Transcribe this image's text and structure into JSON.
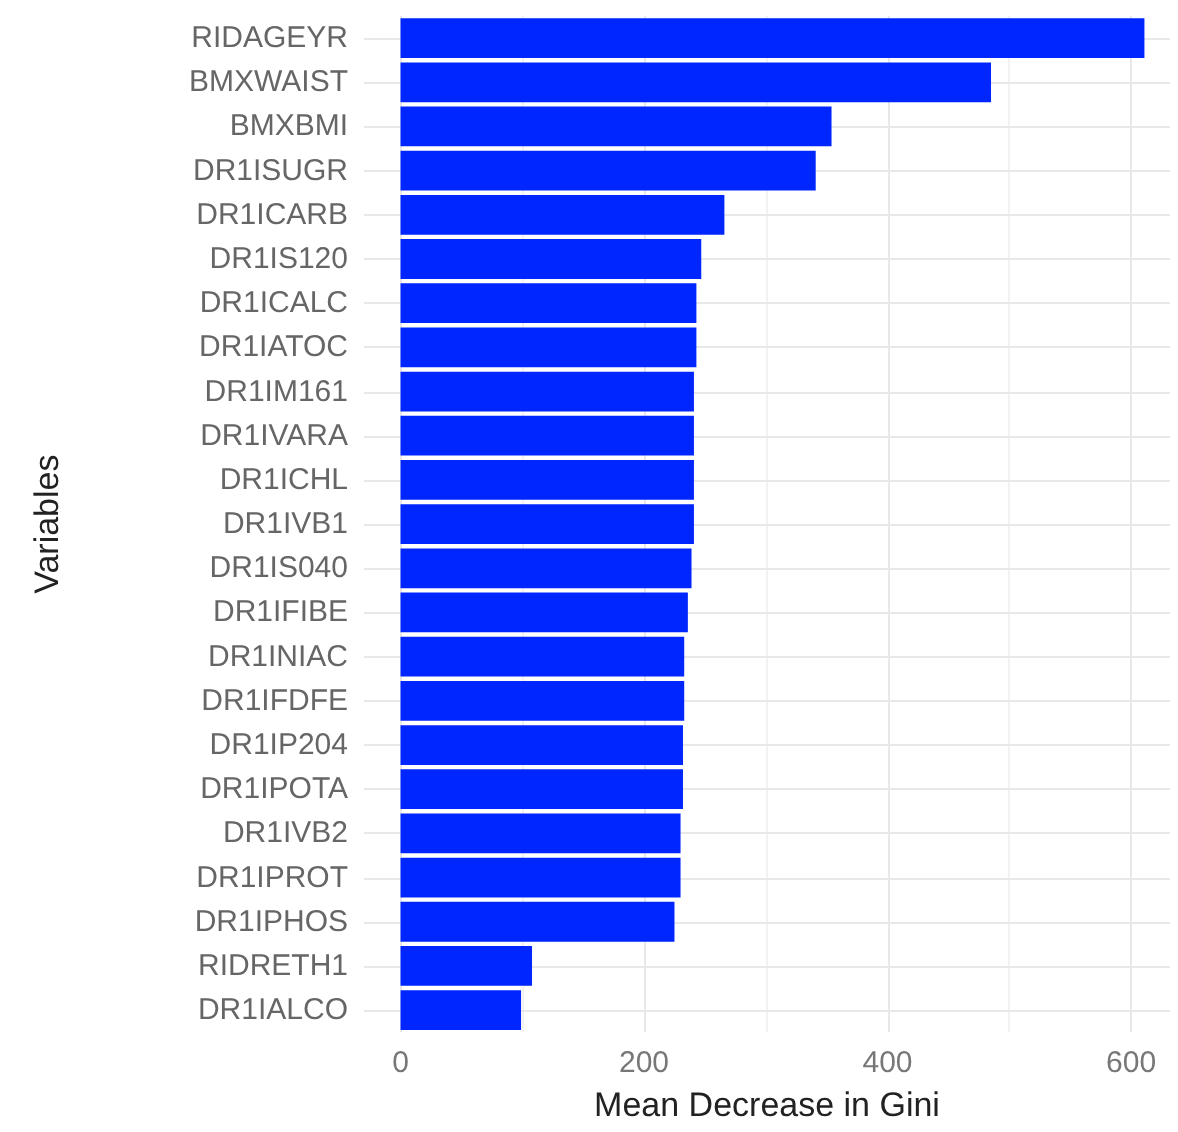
{
  "chart_data": {
    "type": "bar",
    "orientation": "horizontal",
    "xlabel": "Mean Decrease in Gini",
    "ylabel": "Variables",
    "categories": [
      "RIDAGEYR",
      "BMXWAIST",
      "BMXBMI",
      "DR1ISUGR",
      "DR1ICARB",
      "DR1IS120",
      "DR1ICALC",
      "DR1IATOC",
      "DR1IM161",
      "DR1IVARA",
      "DR1ICHL",
      "DR1IVB1",
      "DR1IS040",
      "DR1IFIBE",
      "DR1INIAC",
      "DR1IFDFE",
      "DR1IP204",
      "DR1IPOTA",
      "DR1IVB2",
      "DR1IPROT",
      "DR1IPHOS",
      "RIDRETH1",
      "DR1IALCO"
    ],
    "values": [
      611,
      485,
      354,
      341,
      266,
      247,
      243,
      243,
      241,
      241,
      241,
      241,
      239,
      236,
      233,
      233,
      232,
      232,
      230,
      230,
      225,
      108,
      99
    ],
    "color": "#0026ff",
    "xlim": [
      -30,
      632
    ],
    "xticks": [
      0,
      200,
      400,
      600
    ],
    "grid": true
  }
}
